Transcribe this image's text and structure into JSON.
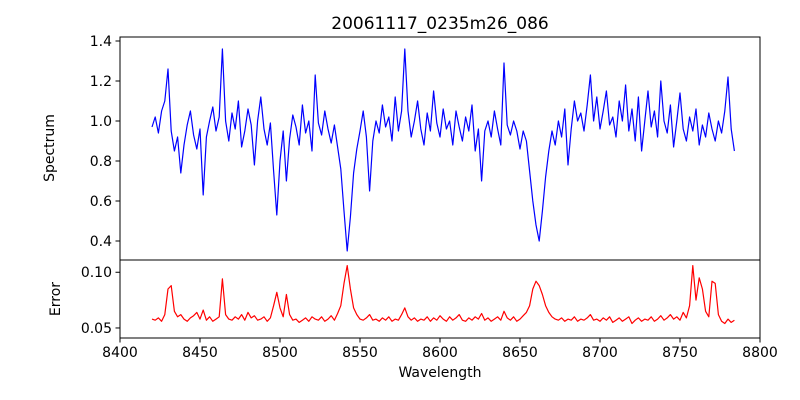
{
  "figure_title": "20061117_0235m26_086",
  "colors": {
    "spectrum_line": "#0000ff",
    "error_line": "#ff0000",
    "axis": "#000000",
    "background": "#ffffff"
  },
  "chart_data": [
    {
      "type": "line",
      "title": "20061117_0235m26_086",
      "ylabel": "Spectrum",
      "legend": "none",
      "grid": false,
      "color": "#0000ff",
      "xlim": [
        8400,
        8800
      ],
      "ylim": [
        0.305,
        1.42
      ],
      "ytick_labels": [
        "0.4",
        "0.6",
        "0.8",
        "1.0",
        "1.2",
        "1.4"
      ],
      "x_start": 8420,
      "x_step": 2,
      "values": [
        0.97,
        1.02,
        0.94,
        1.05,
        1.1,
        1.26,
        0.95,
        0.85,
        0.92,
        0.74,
        0.88,
        0.98,
        1.05,
        0.93,
        0.86,
        0.96,
        0.63,
        0.92,
        1.0,
        1.07,
        0.95,
        1.02,
        1.36,
        1.0,
        0.9,
        1.04,
        0.96,
        1.1,
        0.87,
        0.95,
        1.06,
        0.98,
        0.78,
        1.0,
        1.12,
        0.96,
        0.88,
        0.99,
        0.75,
        0.53,
        0.8,
        0.95,
        0.7,
        0.91,
        1.03,
        0.97,
        0.88,
        1.08,
        0.94,
        1.0,
        0.85,
        1.23,
        0.99,
        0.93,
        1.05,
        0.96,
        0.89,
        0.98,
        0.87,
        0.76,
        0.55,
        0.35,
        0.52,
        0.74,
        0.86,
        0.95,
        1.05,
        0.92,
        0.65,
        0.9,
        1.0,
        0.94,
        1.08,
        0.97,
        1.02,
        0.9,
        1.12,
        0.95,
        1.05,
        1.36,
        1.05,
        0.92,
        1.0,
        1.1,
        0.96,
        0.88,
        1.04,
        0.95,
        1.15,
        0.99,
        0.92,
        1.06,
        0.96,
        1.0,
        0.88,
        1.05,
        0.97,
        0.9,
        1.02,
        0.95,
        1.08,
        0.85,
        0.96,
        0.7,
        0.95,
        1.0,
        0.92,
        1.05,
        0.96,
        0.88,
        1.29,
        0.98,
        0.93,
        1.0,
        0.95,
        0.86,
        0.95,
        0.9,
        0.75,
        0.6,
        0.48,
        0.4,
        0.55,
        0.72,
        0.85,
        0.95,
        0.88,
        1.0,
        0.92,
        1.06,
        0.78,
        0.96,
        1.1,
        1.0,
        1.04,
        0.95,
        1.08,
        1.23,
        1.0,
        1.12,
        0.96,
        1.05,
        1.15,
        0.98,
        1.02,
        0.92,
        1.1,
        1.0,
        1.18,
        0.95,
        1.06,
        0.9,
        1.12,
        0.85,
        1.0,
        1.15,
        0.97,
        1.05,
        0.92,
        1.2,
        1.0,
        0.94,
        1.08,
        0.87,
        1.0,
        1.14,
        0.96,
        0.9,
        1.02,
        0.95,
        1.06,
        0.88,
        0.98,
        0.92,
        1.04,
        0.96,
        0.9,
        1.0,
        0.94,
        1.05,
        1.22,
        0.96,
        0.85
      ]
    },
    {
      "type": "line",
      "ylabel": "Error",
      "xlabel": "Wavelength",
      "legend": "none",
      "grid": false,
      "color": "#ff0000",
      "xlim": [
        8400,
        8800
      ],
      "ylim": [
        0.041,
        0.111
      ],
      "ytick_labels": [
        "0.05",
        "0.10"
      ],
      "xtick_labels": [
        "8400",
        "8450",
        "8500",
        "8550",
        "8600",
        "8650",
        "8700",
        "8750",
        "8800"
      ],
      "x_start": 8420,
      "x_step": 2,
      "values": [
        0.058,
        0.057,
        0.059,
        0.056,
        0.062,
        0.085,
        0.088,
        0.065,
        0.06,
        0.062,
        0.058,
        0.056,
        0.059,
        0.061,
        0.064,
        0.058,
        0.066,
        0.057,
        0.06,
        0.056,
        0.058,
        0.06,
        0.094,
        0.062,
        0.058,
        0.057,
        0.06,
        0.058,
        0.062,
        0.057,
        0.064,
        0.059,
        0.061,
        0.057,
        0.058,
        0.06,
        0.056,
        0.059,
        0.07,
        0.082,
        0.068,
        0.06,
        0.08,
        0.062,
        0.057,
        0.058,
        0.055,
        0.057,
        0.059,
        0.056,
        0.06,
        0.058,
        0.057,
        0.06,
        0.056,
        0.058,
        0.061,
        0.057,
        0.063,
        0.07,
        0.09,
        0.106,
        0.085,
        0.068,
        0.062,
        0.058,
        0.057,
        0.059,
        0.062,
        0.057,
        0.058,
        0.056,
        0.059,
        0.057,
        0.06,
        0.056,
        0.058,
        0.057,
        0.062,
        0.068,
        0.06,
        0.057,
        0.059,
        0.056,
        0.058,
        0.057,
        0.06,
        0.056,
        0.059,
        0.057,
        0.061,
        0.058,
        0.056,
        0.06,
        0.057,
        0.059,
        0.062,
        0.057,
        0.056,
        0.059,
        0.057,
        0.06,
        0.058,
        0.063,
        0.057,
        0.059,
        0.056,
        0.058,
        0.06,
        0.057,
        0.065,
        0.059,
        0.057,
        0.06,
        0.056,
        0.058,
        0.061,
        0.064,
        0.07,
        0.085,
        0.092,
        0.088,
        0.08,
        0.07,
        0.064,
        0.06,
        0.058,
        0.057,
        0.059,
        0.056,
        0.058,
        0.057,
        0.06,
        0.056,
        0.058,
        0.057,
        0.059,
        0.062,
        0.057,
        0.058,
        0.056,
        0.059,
        0.057,
        0.06,
        0.055,
        0.057,
        0.059,
        0.056,
        0.058,
        0.06,
        0.054,
        0.057,
        0.059,
        0.056,
        0.058,
        0.057,
        0.06,
        0.056,
        0.058,
        0.061,
        0.057,
        0.059,
        0.062,
        0.058,
        0.06,
        0.057,
        0.064,
        0.059,
        0.07,
        0.106,
        0.075,
        0.095,
        0.085,
        0.065,
        0.06,
        0.092,
        0.09,
        0.062,
        0.056,
        0.054,
        0.058,
        0.055,
        0.057
      ]
    }
  ]
}
